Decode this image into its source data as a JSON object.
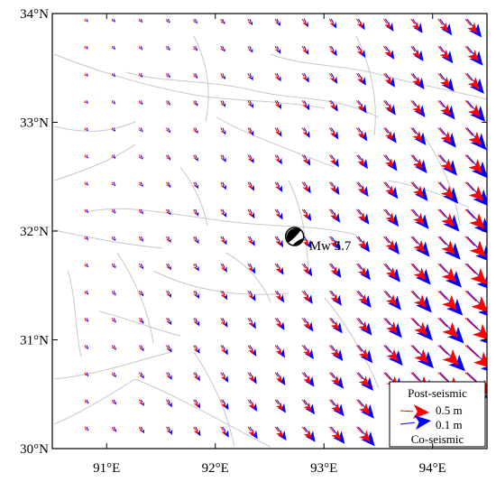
{
  "map": {
    "lon_range": [
      90.5,
      94.5
    ],
    "lat_range": [
      30.0,
      34.0
    ],
    "lon_ticks": [
      {
        "value": 91,
        "label": "91°E"
      },
      {
        "value": 92,
        "label": "92°E"
      },
      {
        "value": 93,
        "label": "93°E"
      },
      {
        "value": 94,
        "label": "94°E"
      }
    ],
    "lat_ticks": [
      {
        "value": 30,
        "label": "30°N"
      },
      {
        "value": 31,
        "label": "31°N"
      },
      {
        "value": 32,
        "label": "32°N"
      },
      {
        "value": 33,
        "label": "33°N"
      },
      {
        "value": 34,
        "label": "34°N"
      }
    ],
    "fault_color": "#c8c8cc",
    "frame_color": "#000000"
  },
  "event": {
    "label": "Mw 5.7",
    "lon": 92.73,
    "lat": 31.95,
    "symbol": "focal-mechanism-beachball"
  },
  "vectors": {
    "post_seismic_color": "#ff0000",
    "co_seismic_color": "#0000ff",
    "grid_spacing_deg": 0.25,
    "field_description": "displacement increases toward the southeast; directions rotate from south-southeast in the west to southeast in the east"
  },
  "legend": {
    "title": "Post-seismic",
    "footer": "Co-seismic",
    "items": [
      {
        "label": "0.5 m",
        "color": "#ff0000"
      },
      {
        "label": "0.1 m",
        "color": "#0000ff"
      }
    ]
  }
}
